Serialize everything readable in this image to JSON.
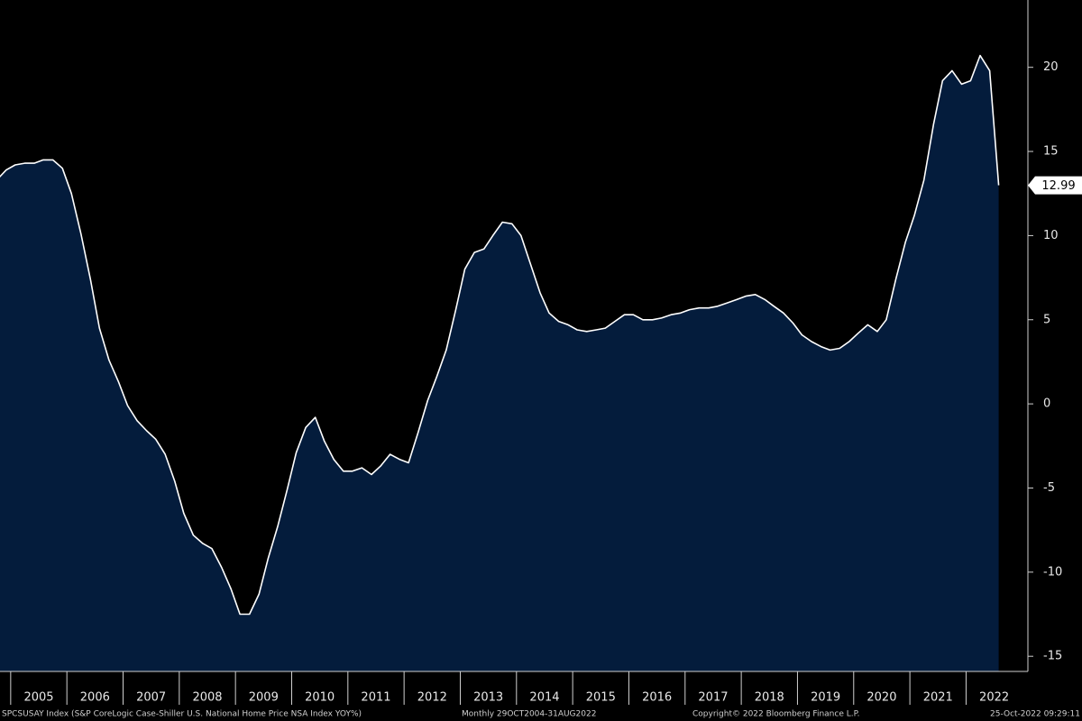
{
  "chart_data": {
    "type": "area",
    "x": [
      2004.75,
      2004.92,
      2005.08,
      2005.25,
      2005.42,
      2005.58,
      2005.75,
      2005.92,
      2006.08,
      2006.25,
      2006.42,
      2006.58,
      2006.75,
      2006.92,
      2007.08,
      2007.25,
      2007.42,
      2007.58,
      2007.75,
      2007.92,
      2008.08,
      2008.25,
      2008.42,
      2008.58,
      2008.75,
      2008.92,
      2009.08,
      2009.25,
      2009.42,
      2009.58,
      2009.75,
      2009.92,
      2010.08,
      2010.25,
      2010.42,
      2010.58,
      2010.75,
      2010.92,
      2011.08,
      2011.25,
      2011.42,
      2011.58,
      2011.75,
      2011.92,
      2012.08,
      2012.25,
      2012.42,
      2012.58,
      2012.75,
      2012.92,
      2013.08,
      2013.25,
      2013.42,
      2013.58,
      2013.75,
      2013.92,
      2014.08,
      2014.25,
      2014.42,
      2014.58,
      2014.75,
      2014.92,
      2015.08,
      2015.25,
      2015.42,
      2015.58,
      2015.75,
      2015.92,
      2016.08,
      2016.25,
      2016.42,
      2016.58,
      2016.75,
      2016.92,
      2017.08,
      2017.25,
      2017.42,
      2017.58,
      2017.75,
      2017.92,
      2018.08,
      2018.25,
      2018.42,
      2018.58,
      2018.75,
      2018.92,
      2019.08,
      2019.25,
      2019.42,
      2019.58,
      2019.75,
      2019.92,
      2020.08,
      2020.25,
      2020.42,
      2020.58,
      2020.75,
      2020.92,
      2021.08,
      2021.25,
      2021.42,
      2021.58,
      2021.75,
      2021.92,
      2022.08,
      2022.25,
      2022.42,
      2022.58
    ],
    "values": [
      13.3,
      13.9,
      14.2,
      14.3,
      14.3,
      14.5,
      14.5,
      14.0,
      12.5,
      10.1,
      7.4,
      4.5,
      2.6,
      1.3,
      -0.1,
      -1.0,
      -1.6,
      -2.1,
      -3.0,
      -4.6,
      -6.5,
      -7.8,
      -8.3,
      -8.6,
      -9.7,
      -11.0,
      -12.5,
      -12.5,
      -11.3,
      -9.2,
      -7.3,
      -5.1,
      -2.9,
      -1.4,
      -0.8,
      -2.2,
      -3.3,
      -4.0,
      -4.0,
      -3.8,
      -4.2,
      -3.7,
      -3.0,
      -3.3,
      -3.5,
      -1.7,
      0.2,
      1.6,
      3.2,
      5.6,
      8.0,
      9.0,
      9.2,
      10.0,
      10.8,
      10.7,
      10.0,
      8.3,
      6.6,
      5.4,
      4.9,
      4.7,
      4.4,
      4.3,
      4.4,
      4.5,
      4.9,
      5.3,
      5.3,
      5.0,
      5.0,
      5.1,
      5.3,
      5.4,
      5.6,
      5.7,
      5.7,
      5.8,
      6.0,
      6.2,
      6.4,
      6.5,
      6.2,
      5.8,
      5.4,
      4.8,
      4.1,
      3.7,
      3.4,
      3.2,
      3.3,
      3.7,
      4.2,
      4.7,
      4.3,
      5.0,
      7.4,
      9.6,
      11.2,
      13.3,
      16.6,
      19.2,
      19.8,
      19.0,
      19.2,
      20.7,
      19.8,
      12.99
    ],
    "color": "#041c3c",
    "line_color": "#ffffff",
    "xlim": [
      2004.81,
      2023.1
    ],
    "xticks": [
      2005,
      2006,
      2007,
      2008,
      2009,
      2010,
      2011,
      2012,
      2013,
      2014,
      2015,
      2016,
      2017,
      2018,
      2019,
      2020,
      2021,
      2022
    ],
    "ylim": [
      -15.9,
      24
    ],
    "yticks": [
      20,
      15,
      10,
      5,
      0,
      -5,
      -10,
      -15
    ],
    "source_note": "SPCSUSAY Index (S&P CoreLogic Case-Shiller U.S. National Home Price NSA Index YOY%)",
    "period": "Monthly 29OCT2004-31AUG2022",
    "copyright": "Copyright© 2022 Bloomberg Finance L.P.",
    "timestamp": "25-Oct-2022 09:29:11"
  }
}
